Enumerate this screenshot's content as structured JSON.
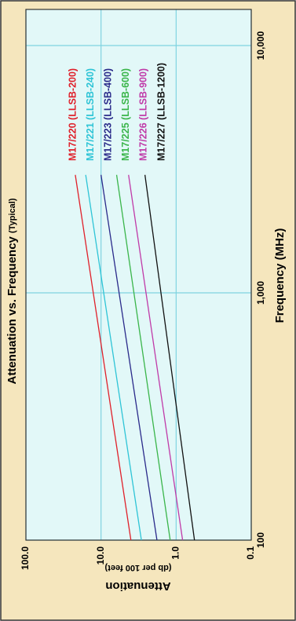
{
  "chart_data": {
    "type": "line",
    "title": "Attenuation vs. Frequency",
    "subtitle": "(Typical)",
    "x_label": "Frequency (MHz)",
    "y_label": "Attenuation",
    "y_sublabel": "(db per 100 feet)",
    "x": [
      100,
      3000
    ],
    "series": [
      {
        "name": "M17/220 (LLSB-200)",
        "color": "#e0202a",
        "values": [
          4.0,
          22
        ]
      },
      {
        "name": "M17/221 (LLSB-240)",
        "color": "#2ec4d6",
        "values": [
          2.9,
          16
        ]
      },
      {
        "name": "M17/223 (LLSB-400)",
        "color": "#2a2a8a",
        "values": [
          1.8,
          10
        ]
      },
      {
        "name": "M17/225 (LLSB-600)",
        "color": "#3ab54a",
        "values": [
          1.2,
          6.2
        ]
      },
      {
        "name": "M17/226 (LLSB-900)",
        "color": "#c03aa8",
        "values": [
          0.82,
          4.3
        ]
      },
      {
        "name": "M17/227 (LLSB-1200)",
        "color": "#111111",
        "values": [
          0.57,
          2.6
        ]
      }
    ],
    "xlog": true,
    "ylog": true,
    "xlim": [
      100,
      14000
    ],
    "xticks": [
      100,
      {
        "value": 1000,
        "label": "1,000"
      },
      {
        "value": 10000,
        "label": "10,000"
      }
    ],
    "ylim": [
      0.1,
      100
    ],
    "yticks": [
      {
        "value": 0.1,
        "label": "0.1"
      },
      {
        "value": 1,
        "label": "1.0"
      },
      {
        "value": 10,
        "label": "10.0"
      },
      {
        "value": 100,
        "label": "100.0"
      }
    ],
    "grid": true
  }
}
